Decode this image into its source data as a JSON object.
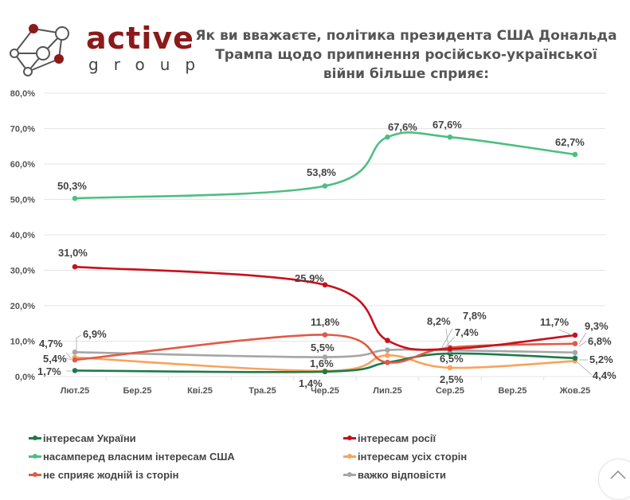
{
  "logo": {
    "word": "active",
    "sub": "group",
    "colors": {
      "brand": "#8b1a1a",
      "node": "#555555"
    }
  },
  "title": {
    "lines": [
      "Як ви вважаєте, політика президента США Дональда",
      "Трампа щодо припинення російсько-української",
      "війни більше сприяє:"
    ]
  },
  "chart_data": {
    "type": "line",
    "title": "Як ви вважаєте, політика президента США Дональда Трампа щодо припинення російсько-української війни більше сприяє:",
    "xlabel": "",
    "ylabel": "",
    "ylim": [
      0,
      80
    ],
    "y_ticks": [
      "0,0%",
      "10,0%",
      "20,0%",
      "30,0%",
      "40,0%",
      "50,0%",
      "60,0%",
      "70,0%",
      "80,0%"
    ],
    "categories": [
      "Лют.25",
      "Бер.25",
      "Кві.25",
      "Тра.25",
      "Чер.25",
      "Лип.25",
      "Сер.25",
      "Вер.25",
      "Жов.25"
    ],
    "grid": true,
    "legend_position": "bottom",
    "series": [
      {
        "name": "інтересам України",
        "color": "#1f7a4a",
        "points": [
          {
            "x": 0,
            "y": 1.7,
            "label": "1,7%"
          },
          {
            "x": 4,
            "y": 1.4,
            "label": "1,4%"
          },
          {
            "x": 5,
            "y": 4.0,
            "label": ""
          },
          {
            "x": 6,
            "y": 6.5,
            "label": "6,5%"
          },
          {
            "x": 8,
            "y": 5.2,
            "label": "5,2%"
          }
        ]
      },
      {
        "name": "інтересам росії",
        "color": "#c8101a",
        "points": [
          {
            "x": 0,
            "y": 31.0,
            "label": "31,0%"
          },
          {
            "x": 4,
            "y": 25.9,
            "label": "25,9%"
          },
          {
            "x": 5,
            "y": 10.2,
            "label": ""
          },
          {
            "x": 6,
            "y": 7.8,
            "label": "7,8%"
          },
          {
            "x": 8,
            "y": 11.7,
            "label": "11,7%"
          }
        ]
      },
      {
        "name": "насамперед власним інтересам США",
        "color": "#4cbf80",
        "points": [
          {
            "x": 0,
            "y": 50.3,
            "label": "50,3%"
          },
          {
            "x": 4,
            "y": 53.8,
            "label": "53,8%"
          },
          {
            "x": 5,
            "y": 67.6,
            "label": "67,6%"
          },
          {
            "x": 6,
            "y": 67.6,
            "label": "67,6%"
          },
          {
            "x": 8,
            "y": 62.7,
            "label": "62,7%"
          }
        ]
      },
      {
        "name": "інтересам усіх сторін",
        "color": "#f7a45c",
        "points": [
          {
            "x": 0,
            "y": 5.4,
            "label": "5,4%"
          },
          {
            "x": 4,
            "y": 1.6,
            "label": "1,6%"
          },
          {
            "x": 5,
            "y": 6.0,
            "label": ""
          },
          {
            "x": 6,
            "y": 2.5,
            "label": "2,5%"
          },
          {
            "x": 8,
            "y": 4.4,
            "label": "4,4%"
          }
        ]
      },
      {
        "name": "не сприяє жодній із сторін",
        "color": "#e05a45",
        "points": [
          {
            "x": 0,
            "y": 4.7,
            "label": "4,7%"
          },
          {
            "x": 4,
            "y": 11.8,
            "label": "11,8%"
          },
          {
            "x": 5,
            "y": 4.0,
            "label": ""
          },
          {
            "x": 6,
            "y": 8.2,
            "label": "8,2%"
          },
          {
            "x": 8,
            "y": 9.3,
            "label": "9,3%"
          }
        ]
      },
      {
        "name": "важко відповісти",
        "color": "#a6a6a6",
        "points": [
          {
            "x": 0,
            "y": 6.9,
            "label": "6,9%"
          },
          {
            "x": 4,
            "y": 5.5,
            "label": "5,5%"
          },
          {
            "x": 5,
            "y": 7.5,
            "label": ""
          },
          {
            "x": 6,
            "y": 7.4,
            "label": "7,4%"
          },
          {
            "x": 8,
            "y": 6.8,
            "label": "6,8%"
          }
        ]
      }
    ]
  },
  "scroll_top": {
    "icon": "chevron-up-icon"
  }
}
